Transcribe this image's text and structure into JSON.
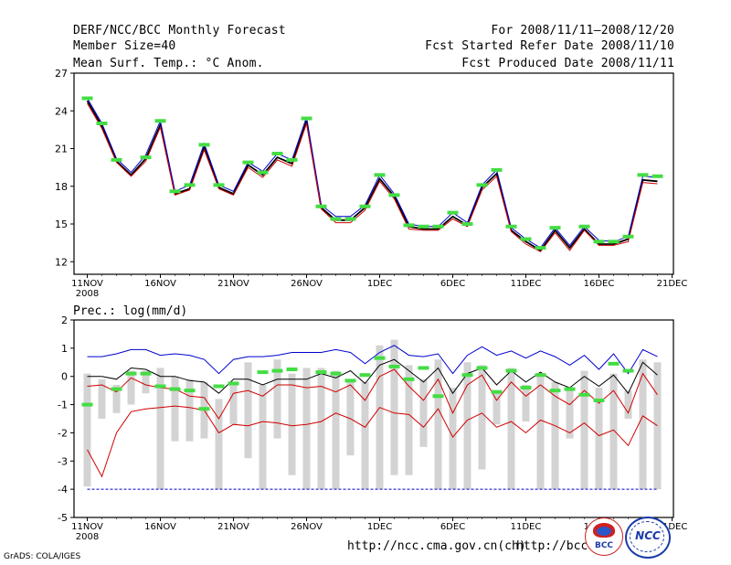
{
  "header": {
    "title": "DERF/NCC/BCC Monthly Forecast",
    "member": "Member Size=40",
    "variable": "Mean Surf. Temp.: °C Anom.",
    "period": "For 2008/11/11—2008/12/20",
    "started": "Fcst Started Refer Date 2008/11/10",
    "produced": "Fcst Produced Date 2008/11/11"
  },
  "footer": {
    "grads": "GrADS: COLA/IGES",
    "url_ncc": "http://ncc.cma.gov.cn(ch)",
    "url_bcc": "http://bcc.",
    "logo_bcc": "BCC",
    "logo_ncc": "NCC"
  },
  "colors": {
    "ensemble_mean": "#000000",
    "upper": "#0000d0",
    "lower": "#d00000",
    "observed": "#44dd44",
    "spread": "#d3d3d3"
  },
  "chart_data": [
    {
      "type": "line",
      "title": "Mean Surf. Temp.: °C Anom.",
      "ylim": [
        11,
        27
      ],
      "yticks": [
        12,
        15,
        18,
        21,
        24,
        27
      ],
      "xticks": [
        {
          "day": 0,
          "label": "11NOV",
          "sub": "2008"
        },
        {
          "day": 5,
          "label": "16NOV"
        },
        {
          "day": 10,
          "label": "21NOV"
        },
        {
          "day": 15,
          "label": "26NOV"
        },
        {
          "day": 20,
          "label": "1DEC"
        },
        {
          "day": 25,
          "label": "6DEC"
        },
        {
          "day": 30,
          "label": "11DEC"
        },
        {
          "day": 35,
          "label": "16DEC"
        },
        {
          "day": 40,
          "label": "21DEC"
        }
      ],
      "series": [
        {
          "name": "ensemble-mean",
          "values": [
            24.8,
            22.8,
            20.0,
            18.9,
            20.2,
            22.9,
            17.4,
            17.8,
            21.1,
            17.9,
            17.4,
            19.7,
            18.9,
            20.3,
            19.8,
            23.2,
            16.3,
            15.3,
            15.3,
            16.3,
            18.6,
            17.2,
            14.8,
            14.6,
            14.6,
            15.6,
            14.9,
            17.9,
            19.0,
            14.5,
            13.6,
            12.9,
            14.5,
            13.1,
            14.6,
            13.4,
            13.4,
            13.8,
            18.5,
            18.4
          ]
        },
        {
          "name": "upper-member",
          "values": [
            25.0,
            23.0,
            20.2,
            19.1,
            20.5,
            23.2,
            17.6,
            18.1,
            21.4,
            18.1,
            17.6,
            19.9,
            19.2,
            20.6,
            20.1,
            23.5,
            16.5,
            15.6,
            15.6,
            16.5,
            18.9,
            17.4,
            15.0,
            14.8,
            14.8,
            15.9,
            15.1,
            18.1,
            19.3,
            14.7,
            13.8,
            13.1,
            14.7,
            13.3,
            14.8,
            13.7,
            13.6,
            14.0,
            18.8,
            18.7
          ]
        },
        {
          "name": "lower-member",
          "values": [
            24.6,
            22.6,
            19.9,
            18.8,
            20.0,
            22.7,
            17.3,
            17.7,
            20.9,
            17.8,
            17.3,
            19.5,
            18.7,
            20.1,
            19.6,
            23.0,
            16.2,
            15.1,
            15.1,
            16.1,
            18.4,
            17.0,
            14.6,
            14.5,
            14.5,
            15.4,
            14.8,
            17.7,
            18.8,
            14.4,
            13.4,
            12.8,
            14.3,
            12.9,
            14.5,
            13.3,
            13.3,
            13.6,
            18.3,
            18.2
          ]
        }
      ],
      "observed": [
        25.0,
        23.0,
        20.1,
        null,
        20.3,
        23.2,
        17.6,
        18.1,
        21.3,
        18.1,
        null,
        19.9,
        19.1,
        20.6,
        20.1,
        23.4,
        16.4,
        15.4,
        15.4,
        16.4,
        18.9,
        17.3,
        14.9,
        14.8,
        14.8,
        15.9,
        15.0,
        18.1,
        19.3,
        14.8,
        13.8,
        13.1,
        14.7,
        null,
        14.8,
        13.6,
        13.6,
        14.0,
        18.9,
        18.8
      ]
    },
    {
      "type": "line",
      "title": "Prec.: log(mm/d)",
      "ylim": [
        -5,
        2
      ],
      "yticks": [
        -5,
        -4,
        -3,
        -2,
        -1,
        0,
        1,
        2
      ],
      "xticks": [
        {
          "day": 0,
          "label": "11NOV",
          "sub": "2008"
        },
        {
          "day": 5,
          "label": "16NOV"
        },
        {
          "day": 10,
          "label": "21NOV"
        },
        {
          "day": 15,
          "label": "26NOV"
        },
        {
          "day": 20,
          "label": "1DEC"
        },
        {
          "day": 25,
          "label": "6DEC"
        },
        {
          "day": 30,
          "label": "11DEC"
        },
        {
          "day": 35,
          "label": "16DEC"
        },
        {
          "day": 40,
          "label": "21DEC"
        }
      ],
      "series": [
        {
          "name": "upper-member",
          "values": [
            0.7,
            0.7,
            0.8,
            0.95,
            0.95,
            0.75,
            0.8,
            0.75,
            0.6,
            0.1,
            0.6,
            0.7,
            0.7,
            0.75,
            0.85,
            0.85,
            0.85,
            0.95,
            0.85,
            0.45,
            0.85,
            1.1,
            0.75,
            0.7,
            0.8,
            0.1,
            0.75,
            1.05,
            0.75,
            0.9,
            0.65,
            0.9,
            0.7,
            0.4,
            0.75,
            0.25,
            0.8,
            0.1,
            0.95,
            0.7
          ]
        },
        {
          "name": "ensemble-mean",
          "values": [
            0.0,
            0.0,
            -0.1,
            0.3,
            0.25,
            0.0,
            0.0,
            -0.15,
            -0.2,
            -0.6,
            -0.1,
            -0.1,
            -0.3,
            -0.1,
            -0.1,
            -0.1,
            0.1,
            -0.05,
            0.2,
            -0.25,
            0.4,
            0.6,
            0.2,
            -0.2,
            0.3,
            -0.6,
            0.1,
            0.3,
            -0.3,
            0.2,
            -0.2,
            0.15,
            -0.2,
            -0.4,
            0.0,
            -0.35,
            0.05,
            -0.6,
            0.5,
            0.05
          ]
        },
        {
          "name": "lower-member-1",
          "values": [
            -0.35,
            -0.3,
            -0.55,
            -0.05,
            -0.3,
            -0.4,
            -0.45,
            -0.7,
            -0.75,
            -1.5,
            -0.6,
            -0.5,
            -0.7,
            -0.3,
            -0.3,
            -0.4,
            -0.35,
            -0.55,
            -0.3,
            -0.85,
            0.0,
            0.25,
            -0.35,
            -0.85,
            -0.1,
            -1.3,
            -0.3,
            0.05,
            -0.85,
            -0.2,
            -0.7,
            -0.3,
            -0.7,
            -1.0,
            -0.5,
            -0.95,
            -0.5,
            -1.3,
            0.1,
            -0.65
          ]
        },
        {
          "name": "lower-member-2",
          "values": [
            -2.6,
            -3.55,
            -2.0,
            -1.25,
            -1.15,
            -1.1,
            -1.05,
            -1.1,
            -1.2,
            -2.0,
            -1.7,
            -1.75,
            -1.6,
            -1.65,
            -1.75,
            -1.7,
            -1.6,
            -1.3,
            -1.5,
            -1.8,
            -1.1,
            -1.3,
            -1.35,
            -1.8,
            -1.15,
            -2.15,
            -1.55,
            -1.3,
            -1.8,
            -1.6,
            -2.0,
            -1.55,
            -1.75,
            -2.0,
            -1.65,
            -2.1,
            -1.9,
            -2.45,
            -1.4,
            -1.75
          ]
        },
        {
          "name": "lower-bound",
          "values": [
            -4.0,
            -4.0,
            -4.0,
            -4.0,
            -4.0,
            -4.0,
            -4.0,
            -4.0,
            -4.0,
            -4.0,
            -4.0,
            -4.0,
            -4.0,
            -4.0,
            -4.0,
            -4.0,
            -4.0,
            -4.0,
            -4.0,
            -4.0,
            -4.0,
            -4.0,
            -4.0,
            -4.0,
            -4.0,
            -4.0,
            -4.0,
            -4.0,
            -4.0,
            -4.0,
            -4.0,
            -4.0,
            -4.0,
            -4.0,
            -4.0,
            -4.0,
            -4.0,
            -4.0,
            -4.0,
            -4.0
          ]
        }
      ],
      "spread_bars": [
        [
          -3.9,
          0.1
        ],
        [
          -1.5,
          -0.1
        ],
        [
          -1.3,
          -0.3
        ],
        [
          -1.0,
          0.2
        ],
        [
          -0.6,
          0.2
        ],
        [
          -4.0,
          0.3
        ],
        [
          -2.3,
          0.0
        ],
        [
          -2.3,
          -0.1
        ],
        [
          -2.2,
          -0.2
        ],
        [
          -4.0,
          -0.8
        ],
        [
          -1.7,
          -0.3
        ],
        [
          -2.9,
          0.5
        ],
        [
          -4.0,
          -0.3
        ],
        [
          -2.2,
          0.6
        ],
        [
          -3.5,
          0.1
        ],
        [
          -4.0,
          0.3
        ],
        [
          -4.0,
          0.3
        ],
        [
          -4.0,
          0.2
        ],
        [
          -2.8,
          -0.1
        ],
        [
          -4.0,
          -0.2
        ],
        [
          -4.0,
          1.1
        ],
        [
          -3.5,
          1.3
        ],
        [
          -3.5,
          0.4
        ],
        [
          -2.5,
          -0.1
        ],
        [
          -4.0,
          0.6
        ],
        [
          -4.0,
          -0.4
        ],
        [
          -4.0,
          0.5
        ],
        [
          -3.3,
          0.4
        ],
        [
          -1.7,
          -0.5
        ],
        [
          -4.0,
          0.3
        ],
        [
          -1.6,
          -0.3
        ],
        [
          -4.0,
          0.0
        ],
        [
          -4.0,
          -0.2
        ],
        [
          -2.2,
          -0.5
        ],
        [
          -4.0,
          0.2
        ],
        [
          -4.0,
          -0.4
        ],
        [
          -4.0,
          0.1
        ],
        [
          -1.5,
          -0.5
        ],
        [
          -4.0,
          0.6
        ],
        [
          -4.0,
          0.5
        ]
      ],
      "observed": [
        -1.0,
        null,
        -0.45,
        0.1,
        0.1,
        -0.35,
        -0.45,
        -0.5,
        -1.15,
        -0.35,
        -0.25,
        null,
        0.15,
        0.2,
        0.25,
        null,
        0.15,
        0.1,
        -0.15,
        0.05,
        0.65,
        0.35,
        -0.1,
        0.3,
        -0.7,
        null,
        0.05,
        0.3,
        -0.55,
        0.2,
        -0.4,
        0.05,
        -0.5,
        -0.45,
        -0.65,
        -0.85,
        0.45,
        0.2,
        null,
        null
      ]
    }
  ]
}
